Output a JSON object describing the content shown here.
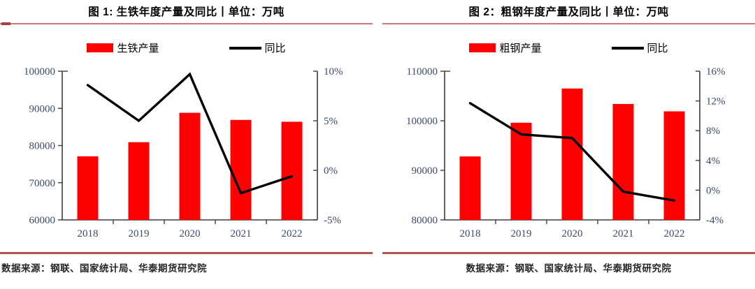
{
  "figures": [
    {
      "source": "数据来源：钢联、国家统计局、华泰期货研究院"
    },
    {
      "source": "数据来源：钢联、国家统计局、华泰期货研究院"
    }
  ],
  "chart_data": [
    {
      "type": "combo-bar-line",
      "title": "图 1: 生铁年度产量及同比丨单位：万吨",
      "categories": [
        "2018",
        "2019",
        "2020",
        "2021",
        "2022"
      ],
      "series": [
        {
          "name": "生铁产量",
          "type": "bar",
          "axis": "left",
          "color": "#FF0000",
          "values": [
            77100,
            80900,
            88800,
            86900,
            86400
          ]
        },
        {
          "name": "同比",
          "type": "line",
          "axis": "right",
          "color": "#000000",
          "values": [
            8.6,
            5.0,
            9.7,
            -2.3,
            -0.6
          ]
        }
      ],
      "y_left": {
        "min": 60000,
        "max": 100000,
        "step": 10000,
        "tick_labels": [
          "60000",
          "70000",
          "80000",
          "90000",
          "100000"
        ]
      },
      "y_right": {
        "min": -5,
        "max": 10,
        "step": 5,
        "tick_labels": [
          "-5%",
          "0%",
          "5%",
          "10%"
        ]
      },
      "grid": false,
      "legend_position": "top"
    },
    {
      "type": "combo-bar-line",
      "title": "图 2：粗钢年度产量及同比丨单位：万吨",
      "categories": [
        "2018",
        "2019",
        "2020",
        "2021",
        "2022"
      ],
      "series": [
        {
          "name": "粗钢产量",
          "type": "bar",
          "axis": "left",
          "color": "#FF0000",
          "values": [
            92800,
            99600,
            106500,
            103400,
            101900
          ]
        },
        {
          "name": "同比",
          "type": "line",
          "axis": "right",
          "color": "#000000",
          "values": [
            11.7,
            7.5,
            7.0,
            -0.2,
            -1.4
          ]
        }
      ],
      "y_left": {
        "min": 80000,
        "max": 110000,
        "step": 10000,
        "tick_labels": [
          "80000",
          "90000",
          "100000",
          "110000"
        ]
      },
      "y_right": {
        "min": -4,
        "max": 16,
        "step": 4,
        "tick_labels": [
          "-4%",
          "0%",
          "4%",
          "8%",
          "12%",
          "16%"
        ]
      },
      "grid": false,
      "legend_position": "top"
    }
  ],
  "colors": {
    "bar": "#FF0000",
    "line": "#000000",
    "title_rule": "#C97A78",
    "title_rule_cap": "#A6413D",
    "bottom_rule": "#B5534F",
    "axis_text": "#3A4A6B",
    "axis_line": "#3d3d3d",
    "source_text": "#262626"
  }
}
